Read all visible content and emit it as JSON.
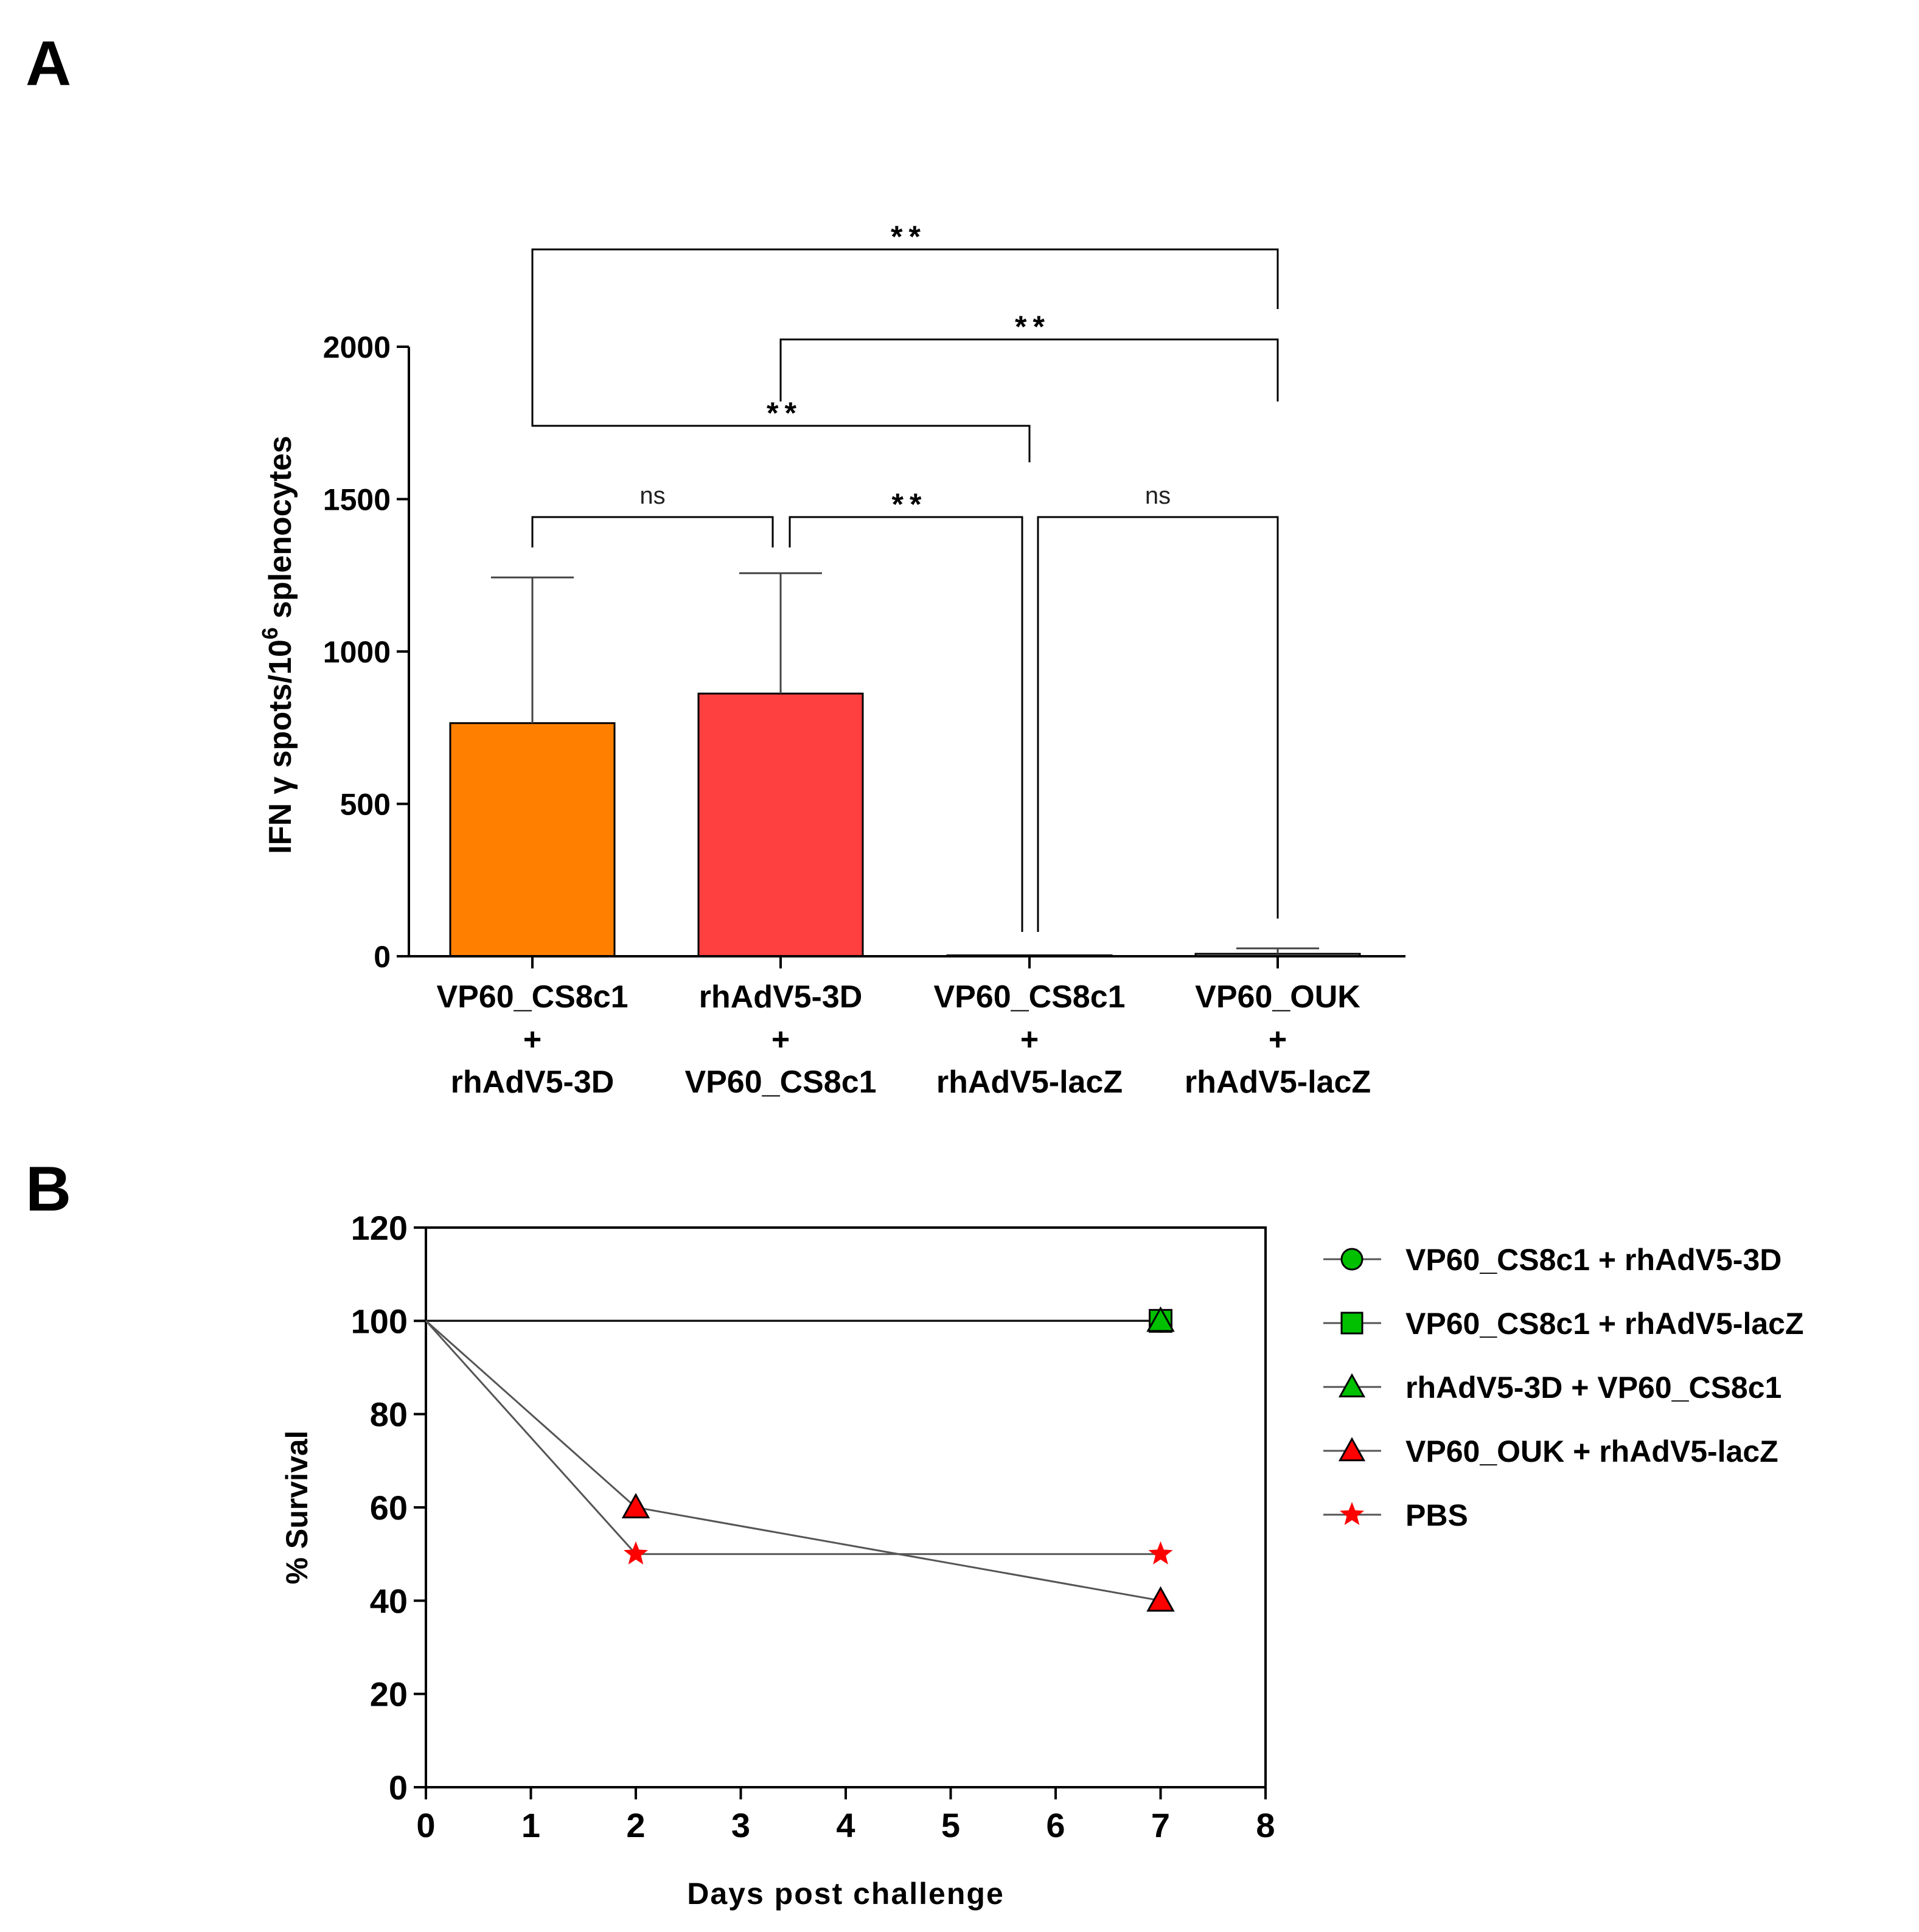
{
  "panels": {
    "a": {
      "letter": "A"
    },
    "b": {
      "letter": "B"
    }
  },
  "chart_data": [
    {
      "type": "bar",
      "ylabel_main": "IFN γ spots/10",
      "ylabel_sup": "6",
      "ylabel_tail": " splenocytes",
      "ylim": [
        0,
        2000
      ],
      "yticks": [
        0,
        500,
        1000,
        1500,
        2000
      ],
      "categories": [
        [
          "VP60_CS8c1",
          "+",
          "rhAdV5-3D"
        ],
        [
          "rhAdV5-3D",
          "+",
          "VP60_CS8c1"
        ],
        [
          "VP60_CS8c1",
          "+",
          "rhAdV5-lacZ"
        ],
        [
          "VP60_OUK",
          "+",
          "rhAdV5-lacZ"
        ]
      ],
      "values": [
        765,
        862,
        3,
        8
      ],
      "errors": [
        478,
        395,
        0,
        18
      ],
      "colors": [
        "#ff8000",
        "#ff4040",
        "#ffffff",
        "#ffffff"
      ],
      "comparisons": [
        {
          "from": 0,
          "to": 1,
          "label": "ns",
          "level": 0
        },
        {
          "from": 1,
          "to": 2,
          "label": "**",
          "level": 0
        },
        {
          "from": 2,
          "to": 3,
          "label": "ns",
          "level": 0
        },
        {
          "from": 0,
          "to": 2,
          "label": "**",
          "level": 1
        },
        {
          "from": 1,
          "to": 3,
          "label": "**",
          "level": 2
        },
        {
          "from": 0,
          "to": 3,
          "label": "**",
          "level": 3
        }
      ]
    },
    {
      "type": "line",
      "xlabel": "Days post challenge",
      "ylabel": "% Survival",
      "xlim": [
        0,
        8
      ],
      "ylim": [
        0,
        120
      ],
      "xticks": [
        0,
        1,
        2,
        3,
        4,
        5,
        6,
        7,
        8
      ],
      "yticks": [
        0,
        20,
        40,
        60,
        80,
        100,
        120
      ],
      "legend_position": "right",
      "series": [
        {
          "name": "VP60_CS8c1 + rhAdV5-3D",
          "marker": "circle",
          "color": "#00c000",
          "x": [
            0,
            7
          ],
          "y": [
            100,
            100
          ]
        },
        {
          "name": "VP60_CS8c1 + rhAdV5-lacZ",
          "marker": "square",
          "color": "#00c000",
          "x": [
            0,
            7
          ],
          "y": [
            100,
            100
          ]
        },
        {
          "name": "rhAdV5-3D + VP60_CS8c1",
          "marker": "triangle",
          "color": "#00c000",
          "x": [
            0,
            7
          ],
          "y": [
            100,
            100
          ]
        },
        {
          "name": "VP60_OUK + rhAdV5-lacZ",
          "marker": "triangle",
          "color": "#ff0000",
          "x": [
            0,
            2,
            7
          ],
          "y": [
            100,
            60,
            40
          ]
        },
        {
          "name": "PBS",
          "marker": "star",
          "color": "#ff0000",
          "x": [
            0,
            2,
            7
          ],
          "y": [
            100,
            50,
            50
          ]
        }
      ]
    }
  ]
}
